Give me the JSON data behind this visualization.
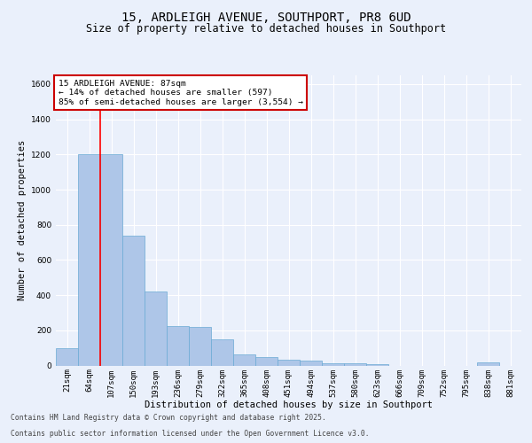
{
  "title": "15, ARDLEIGH AVENUE, SOUTHPORT, PR8 6UD",
  "subtitle": "Size of property relative to detached houses in Southport",
  "xlabel": "Distribution of detached houses by size in Southport",
  "ylabel": "Number of detached properties",
  "categories": [
    "21sqm",
    "64sqm",
    "107sqm",
    "150sqm",
    "193sqm",
    "236sqm",
    "279sqm",
    "322sqm",
    "365sqm",
    "408sqm",
    "451sqm",
    "494sqm",
    "537sqm",
    "580sqm",
    "623sqm",
    "666sqm",
    "709sqm",
    "752sqm",
    "795sqm",
    "838sqm",
    "881sqm"
  ],
  "values": [
    100,
    1200,
    1200,
    740,
    420,
    225,
    220,
    150,
    65,
    50,
    35,
    30,
    15,
    15,
    10,
    0,
    0,
    0,
    0,
    20,
    0
  ],
  "bar_color": "#aec6e8",
  "bar_edge_color": "#6aaad4",
  "red_line_x": 1.5,
  "annotation_text": "15 ARDLEIGH AVENUE: 87sqm\n← 14% of detached houses are smaller (597)\n85% of semi-detached houses are larger (3,554) →",
  "annotation_box_color": "#ffffff",
  "annotation_box_edge_color": "#cc0000",
  "footer_line1": "Contains HM Land Registry data © Crown copyright and database right 2025.",
  "footer_line2": "Contains public sector information licensed under the Open Government Licence v3.0.",
  "background_color": "#eaf0fb",
  "plot_background": "#eaf0fb",
  "grid_color": "#ffffff",
  "ylim": [
    0,
    1650
  ],
  "title_fontsize": 10,
  "subtitle_fontsize": 8.5,
  "axis_label_fontsize": 7.5,
  "tick_fontsize": 6.5,
  "annotation_fontsize": 6.8,
  "footer_fontsize": 5.8
}
